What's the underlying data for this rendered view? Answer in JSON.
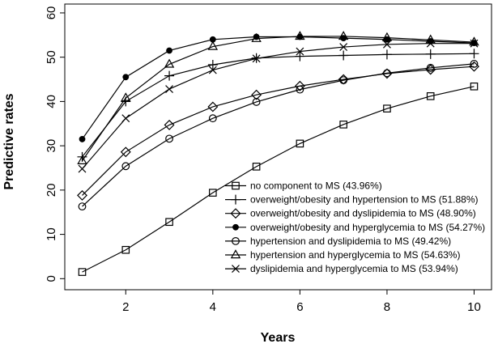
{
  "chart_data": {
    "type": "line",
    "title": "",
    "xlabel": "Years",
    "ylabel": "Predictive rates",
    "xlim": [
      0.6,
      10.4
    ],
    "ylim": [
      -2.5,
      62
    ],
    "xticks": [
      2,
      4,
      6,
      8,
      10
    ],
    "yticks": [
      0,
      10,
      20,
      30,
      40,
      50,
      60
    ],
    "x": [
      1,
      2,
      3,
      4,
      5,
      6,
      7,
      8,
      9,
      10
    ],
    "legend_position": "bottom-right",
    "series": [
      {
        "name": "no component to MS (43.96%)",
        "marker": "square",
        "values": [
          1.5,
          6.5,
          12.8,
          19.4,
          25.3,
          30.5,
          34.8,
          38.4,
          41.2,
          43.4
        ]
      },
      {
        "name": "overweight/obesity and hypertension to MS (51.88%)",
        "marker": "plus",
        "values": [
          27.5,
          40.0,
          45.8,
          48.3,
          49.8,
          50.2,
          50.4,
          50.6,
          50.7,
          50.8
        ]
      },
      {
        "name": "overweight/obesity and dyslipidemia to MS (48.90%)",
        "marker": "diamond",
        "values": [
          18.8,
          28.6,
          34.7,
          38.8,
          41.5,
          43.5,
          45.0,
          46.3,
          47.2,
          47.9
        ]
      },
      {
        "name": "overweight/obesity and hyperglycemia to MS (54.27%)",
        "marker": "dot",
        "values": [
          31.5,
          45.5,
          51.5,
          54.0,
          54.6,
          54.6,
          54.3,
          54.0,
          53.6,
          53.2
        ]
      },
      {
        "name": "hypertension and dyslipidemia to MS (49.42%)",
        "marker": "circle",
        "values": [
          16.3,
          25.4,
          31.6,
          36.2,
          39.9,
          42.7,
          44.8,
          46.4,
          47.6,
          48.5
        ]
      },
      {
        "name": "hypertension and hyperglycemia to MS (54.63%)",
        "marker": "triangle",
        "values": [
          26.6,
          40.8,
          48.4,
          52.4,
          54.2,
          54.7,
          54.7,
          54.4,
          53.9,
          53.4
        ]
      },
      {
        "name": "dyslipidemia and hyperglycemia to MS (53.94%)",
        "marker": "cross",
        "values": [
          24.8,
          36.2,
          42.8,
          47.1,
          49.7,
          51.3,
          52.3,
          52.9,
          53.1,
          53.1
        ]
      }
    ]
  }
}
